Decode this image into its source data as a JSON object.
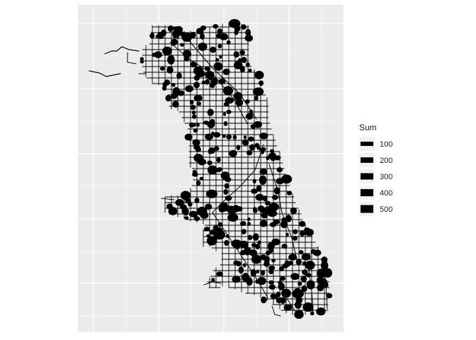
{
  "chart_data": {
    "type": "map",
    "title": "",
    "xlabel": "",
    "ylabel": "",
    "grid": true,
    "panel_background": "#ebebeb",
    "grid_color": "#ffffff",
    "mark_color": "#000000",
    "legend": {
      "title": "Sum",
      "position": "right",
      "entries": [
        "100",
        "200",
        "300",
        "400",
        "500"
      ],
      "values": [
        100,
        200,
        300,
        400,
        500
      ]
    }
  }
}
